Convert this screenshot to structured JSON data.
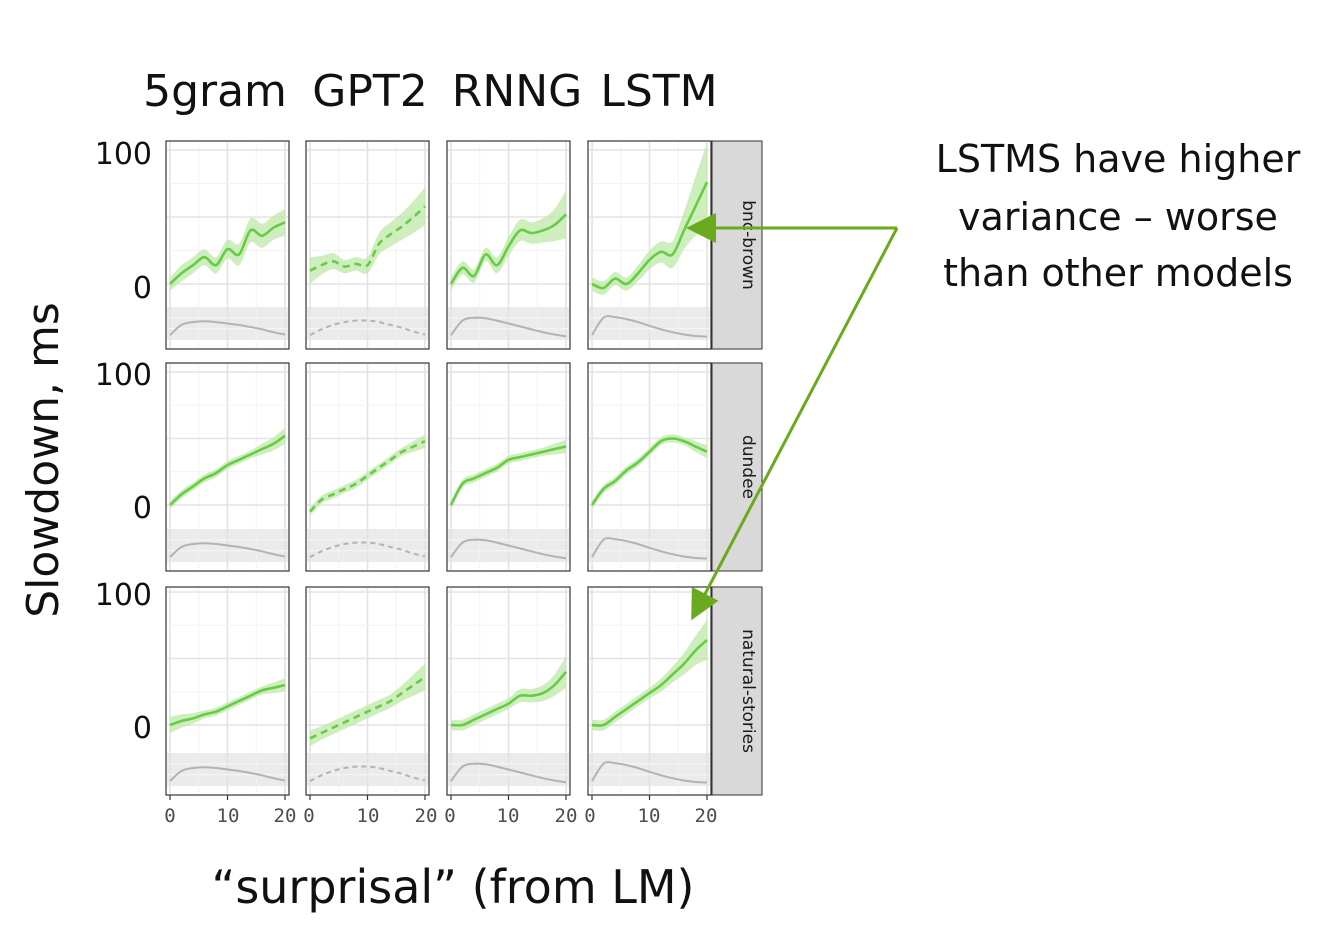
{
  "chart_data": {
    "type": "line",
    "title": "",
    "xlabel": "“surprisal” (from LM)",
    "ylabel": "Slowdown, ms",
    "columns": [
      "5gram",
      "GPT2",
      "RNNG",
      "LSTM"
    ],
    "rows": [
      "bnc-brown",
      "dundee",
      "natural-stories"
    ],
    "x_ticks": [
      "0",
      "10",
      "20"
    ],
    "y_ticks": [
      "0",
      "100"
    ],
    "xlim": [
      0,
      20
    ],
    "ylim": [
      -40,
      100
    ],
    "grid": true,
    "line_color": "#66cc44",
    "band_color": "#bfe8a8",
    "density_color": "#b3b3b3",
    "x": [
      0,
      2,
      4,
      6,
      8,
      10,
      12,
      14,
      16,
      18,
      20
    ],
    "panels": [
      {
        "row": "bnc-brown",
        "col": "5gram",
        "dashed": false,
        "y": [
          0,
          8,
          14,
          20,
          14,
          26,
          22,
          40,
          36,
          42,
          46
        ],
        "spread": [
          5,
          6,
          6,
          6,
          6,
          7,
          8,
          9,
          9,
          9,
          10
        ],
        "density": [
          0.1,
          0.45,
          0.55,
          0.58,
          0.55,
          0.5,
          0.45,
          0.38,
          0.3,
          0.2,
          0.12
        ]
      },
      {
        "row": "bnc-brown",
        "col": "GPT2",
        "dashed": true,
        "y": [
          10,
          14,
          17,
          13,
          15,
          14,
          30,
          37,
          43,
          50,
          58
        ],
        "spread": [
          10,
          7,
          6,
          5,
          5,
          6,
          8,
          9,
          10,
          12,
          14
        ],
        "density": [
          0.1,
          0.3,
          0.45,
          0.55,
          0.6,
          0.6,
          0.55,
          0.45,
          0.35,
          0.22,
          0.12
        ]
      },
      {
        "row": "bnc-brown",
        "col": "RNNG",
        "dashed": false,
        "y": [
          0,
          12,
          6,
          22,
          14,
          28,
          40,
          38,
          40,
          44,
          52
        ],
        "spread": [
          5,
          5,
          5,
          5,
          6,
          7,
          8,
          8,
          9,
          12,
          18
        ],
        "density": [
          0.1,
          0.6,
          0.7,
          0.68,
          0.6,
          0.5,
          0.4,
          0.3,
          0.2,
          0.12,
          0.06
        ]
      },
      {
        "row": "bnc-brown",
        "col": "LSTM",
        "dashed": false,
        "y": [
          0,
          -3,
          4,
          0,
          8,
          18,
          24,
          22,
          40,
          58,
          76
        ],
        "spread": [
          5,
          5,
          5,
          5,
          6,
          7,
          8,
          10,
          14,
          22,
          34
        ],
        "density": [
          0.1,
          0.7,
          0.72,
          0.65,
          0.55,
          0.42,
          0.3,
          0.2,
          0.12,
          0.07,
          0.05
        ]
      },
      {
        "row": "dundee",
        "col": "5gram",
        "dashed": false,
        "y": [
          0,
          8,
          14,
          20,
          24,
          30,
          34,
          38,
          42,
          46,
          52
        ],
        "spread": [
          3,
          3,
          3,
          3,
          3,
          3,
          3,
          3,
          4,
          5,
          6
        ],
        "density": [
          0.1,
          0.45,
          0.55,
          0.58,
          0.55,
          0.5,
          0.45,
          0.38,
          0.3,
          0.2,
          0.12
        ]
      },
      {
        "row": "dundee",
        "col": "GPT2",
        "dashed": true,
        "y": [
          -5,
          4,
          8,
          12,
          16,
          22,
          28,
          34,
          40,
          44,
          48
        ],
        "spread": [
          3,
          3,
          3,
          3,
          3,
          3,
          3,
          3,
          3,
          4,
          5
        ],
        "density": [
          0.1,
          0.3,
          0.45,
          0.55,
          0.6,
          0.6,
          0.55,
          0.45,
          0.35,
          0.22,
          0.12
        ]
      },
      {
        "row": "dundee",
        "col": "RNNG",
        "dashed": false,
        "y": [
          0,
          16,
          20,
          24,
          28,
          34,
          36,
          38,
          40,
          42,
          44
        ],
        "spread": [
          3,
          3,
          3,
          3,
          3,
          3,
          3,
          3,
          3,
          4,
          5
        ],
        "density": [
          0.1,
          0.6,
          0.7,
          0.68,
          0.6,
          0.5,
          0.4,
          0.3,
          0.2,
          0.12,
          0.06
        ]
      },
      {
        "row": "dundee",
        "col": "LSTM",
        "dashed": false,
        "y": [
          0,
          12,
          18,
          26,
          32,
          40,
          48,
          50,
          48,
          44,
          40
        ],
        "spread": [
          3,
          3,
          3,
          3,
          3,
          3,
          3,
          3,
          3,
          4,
          5
        ],
        "density": [
          0.1,
          0.7,
          0.72,
          0.65,
          0.55,
          0.42,
          0.3,
          0.2,
          0.12,
          0.07,
          0.05
        ]
      },
      {
        "row": "natural-stories",
        "col": "5gram",
        "dashed": false,
        "y": [
          0,
          3,
          5,
          8,
          10,
          14,
          18,
          22,
          26,
          28,
          30
        ],
        "spread": [
          6,
          5,
          4,
          3,
          3,
          3,
          3,
          3,
          3,
          4,
          5
        ],
        "density": [
          0.1,
          0.45,
          0.55,
          0.58,
          0.55,
          0.5,
          0.45,
          0.38,
          0.3,
          0.2,
          0.12
        ]
      },
      {
        "row": "natural-stories",
        "col": "GPT2",
        "dashed": true,
        "y": [
          -10,
          -6,
          -2,
          2,
          6,
          10,
          14,
          18,
          24,
          30,
          36
        ],
        "spread": [
          6,
          5,
          5,
          5,
          5,
          5,
          5,
          5,
          6,
          8,
          10
        ],
        "density": [
          0.1,
          0.3,
          0.45,
          0.55,
          0.6,
          0.6,
          0.55,
          0.45,
          0.35,
          0.22,
          0.12
        ]
      },
      {
        "row": "natural-stories",
        "col": "RNNG",
        "dashed": false,
        "y": [
          0,
          0,
          4,
          8,
          12,
          16,
          22,
          22,
          24,
          30,
          40
        ],
        "spread": [
          4,
          4,
          4,
          4,
          4,
          4,
          5,
          5,
          6,
          8,
          12
        ],
        "density": [
          0.1,
          0.6,
          0.7,
          0.68,
          0.6,
          0.5,
          0.4,
          0.3,
          0.2,
          0.12,
          0.06
        ]
      },
      {
        "row": "natural-stories",
        "col": "LSTM",
        "dashed": false,
        "y": [
          0,
          0,
          6,
          12,
          18,
          24,
          30,
          38,
          46,
          56,
          64
        ],
        "spread": [
          4,
          4,
          4,
          4,
          4,
          4,
          5,
          6,
          8,
          11,
          15
        ],
        "density": [
          0.1,
          0.7,
          0.72,
          0.65,
          0.55,
          0.42,
          0.3,
          0.2,
          0.12,
          0.07,
          0.05
        ]
      }
    ]
  },
  "annotation": {
    "lines": [
      "LSTMS have higher",
      "variance – worse",
      "than other models"
    ],
    "color": "#6aaa1e"
  }
}
